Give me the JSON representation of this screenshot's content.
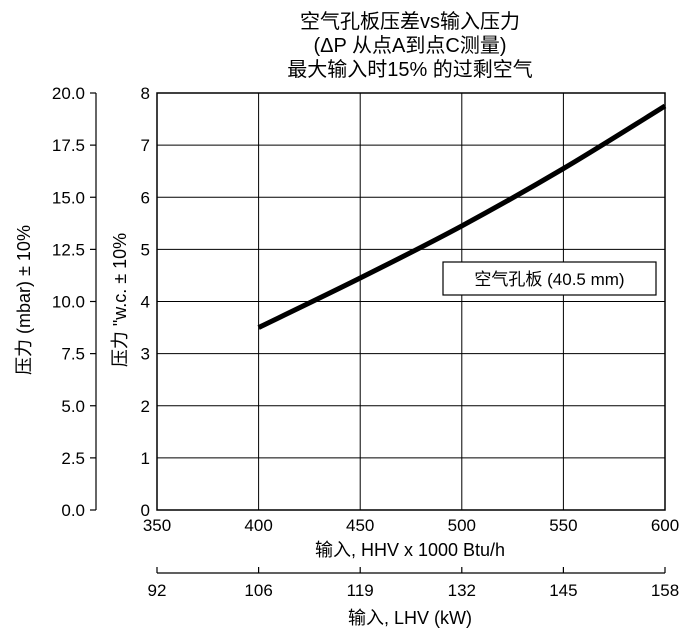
{
  "chart_data": {
    "type": "line",
    "title_lines": [
      "空气孔板压差vs输入压力",
      "(ΔP 从点A到点C测量)",
      "最大输入时15% 的过剩空气"
    ],
    "xlabel": "输入, HHV x 1000 Btu/h",
    "xlabel2": "输入, LHV (kW)",
    "ylabel": "压力 \"w.c. ± 10%",
    "ylabel2": "压力 (mbar) ± 10%",
    "xlim": [
      350,
      600
    ],
    "ylim": [
      0,
      8
    ],
    "x_ticks": [
      "350",
      "400",
      "450",
      "500",
      "550",
      "600"
    ],
    "y_ticks": [
      "0",
      "1",
      "2",
      "3",
      "4",
      "5",
      "6",
      "7",
      "8"
    ],
    "y2_ticks": [
      "0.0",
      "2.5",
      "5.0",
      "7.5",
      "10.0",
      "12.5",
      "15.0",
      "17.5",
      "20.0"
    ],
    "x2_ticks": [
      "92",
      "106",
      "119",
      "132",
      "145",
      "158"
    ],
    "grid": true,
    "series": [
      {
        "name": "空气孔板 (40.5 mm)",
        "x": [
          400,
          450,
          500,
          550,
          600
        ],
        "y": [
          3.5,
          4.45,
          5.45,
          6.55,
          7.75
        ]
      }
    ],
    "annotation": "空气孔板 (40.5 mm)"
  }
}
